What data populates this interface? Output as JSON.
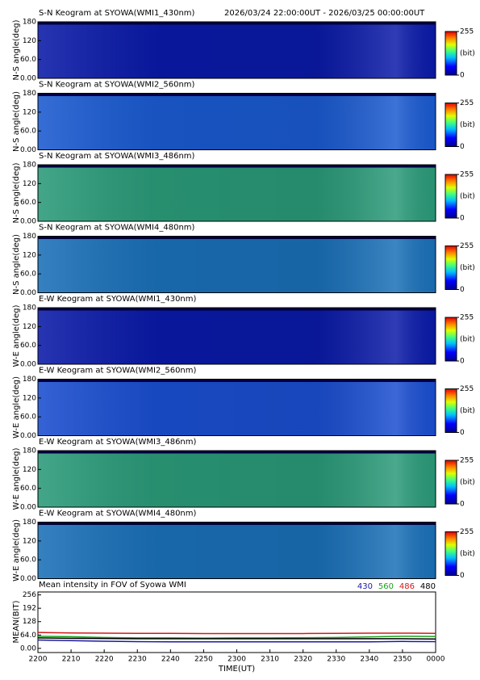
{
  "chart_data": [
    {
      "type": "image",
      "title": "S-N Keogram at SYOWA(WMI1_430nm)",
      "subtitle": "2026/03/24 22:00:00UT - 2026/03/25 00:00:00UT",
      "ylabel": "N-S angle(deg)",
      "ylim": [
        0,
        180
      ],
      "yticks": [
        {
          "value": 0,
          "label": "0.00"
        },
        {
          "value": 60,
          "label": "60.0"
        },
        120,
        180
      ],
      "color": "#0a1aa8",
      "colorbar_ticks": [
        0,
        255
      ],
      "colorbar_label": "(bit)"
    },
    {
      "type": "image",
      "title": "S-N Keogram at SYOWA(WMI2_560nm)",
      "ylabel": "N-S angle(deg)",
      "ylim": [
        0,
        180
      ],
      "yticks": [
        {
          "value": 0,
          "label": "0.00"
        },
        {
          "value": 60,
          "label": "60.0"
        },
        120,
        180
      ],
      "color": "#1a5ad0",
      "colorbar_ticks": [
        0,
        255
      ],
      "colorbar_label": "(bit)"
    },
    {
      "type": "image",
      "title": "S-N Keogram at SYOWA(WMI3_486nm)",
      "ylabel": "N-S angle(deg)",
      "ylim": [
        0,
        180
      ],
      "yticks": [
        {
          "value": 0,
          "label": "0.00"
        },
        {
          "value": 60,
          "label": "60.0"
        },
        120,
        180
      ],
      "color": "#2a9a78",
      "colorbar_ticks": [
        0,
        255
      ],
      "colorbar_label": "(bit)"
    },
    {
      "type": "image",
      "title": "S-N Keogram at SYOWA(WMI4_480nm)",
      "ylabel": "N-S angle(deg)",
      "ylim": [
        0,
        180
      ],
      "yticks": [
        {
          "value": 0,
          "label": "0.00"
        },
        {
          "value": 60,
          "label": "60.0"
        },
        120,
        180
      ],
      "color": "#1a70b8",
      "colorbar_ticks": [
        0,
        255
      ],
      "colorbar_label": "(bit)"
    },
    {
      "type": "image",
      "title": "E-W Keogram at SYOWA(WMI1_430nm)",
      "ylabel": "W-E angle(deg)",
      "ylim": [
        0,
        180
      ],
      "yticks": [
        {
          "value": 0,
          "label": "0.00"
        },
        {
          "value": 60,
          "label": "60.0"
        },
        120,
        180
      ],
      "color": "#0a1aa8",
      "colorbar_ticks": [
        0,
        255
      ],
      "colorbar_label": "(bit)"
    },
    {
      "type": "image",
      "title": "E-W Keogram at SYOWA(WMI2_560nm)",
      "ylabel": "W-E angle(deg)",
      "ylim": [
        0,
        180
      ],
      "yticks": [
        {
          "value": 0,
          "label": "0.00"
        },
        {
          "value": 60,
          "label": "60.0"
        },
        120,
        180
      ],
      "color": "#1a4ed0",
      "colorbar_ticks": [
        0,
        255
      ],
      "colorbar_label": "(bit)"
    },
    {
      "type": "image",
      "title": "E-W Keogram at SYOWA(WMI3_486nm)",
      "ylabel": "W-E angle(deg)",
      "ylim": [
        0,
        180
      ],
      "yticks": [
        {
          "value": 0,
          "label": "0.00"
        },
        {
          "value": 60,
          "label": "60.0"
        },
        120,
        180
      ],
      "color": "#2a9a78",
      "colorbar_ticks": [
        0,
        255
      ],
      "colorbar_label": "(bit)"
    },
    {
      "type": "image",
      "title": "E-W Keogram at SYOWA(WMI4_480nm)",
      "ylabel": "W-E angle(deg)",
      "ylim": [
        0,
        180
      ],
      "yticks": [
        {
          "value": 0,
          "label": "0.00"
        },
        {
          "value": 60,
          "label": "60.0"
        },
        120,
        180
      ],
      "color": "#1a70b8",
      "colorbar_ticks": [
        0,
        255
      ],
      "colorbar_label": "(bit)"
    },
    {
      "type": "line",
      "title": "Mean intensity in FOV of Syowa WMI",
      "ylabel": "MEAN(BIT)",
      "xlabel": "TIME(UT)",
      "x": [
        0,
        10,
        20,
        30,
        40,
        50,
        60,
        70,
        80,
        90,
        100,
        110,
        120
      ],
      "xlim": [
        0,
        120
      ],
      "xticks": [
        {
          "value": 0,
          "label": "2200"
        },
        {
          "value": 10,
          "label": "2210"
        },
        {
          "value": 20,
          "label": "2220"
        },
        {
          "value": 30,
          "label": "2230"
        },
        {
          "value": 40,
          "label": "2240"
        },
        {
          "value": 50,
          "label": "2250"
        },
        {
          "value": 60,
          "label": "2300"
        },
        {
          "value": 70,
          "label": "2310"
        },
        {
          "value": 80,
          "label": "2320"
        },
        {
          "value": 90,
          "label": "2330"
        },
        {
          "value": 100,
          "label": "2340"
        },
        {
          "value": 110,
          "label": "2350"
        },
        {
          "value": 120,
          "label": "0000"
        }
      ],
      "ylim": [
        -20,
        270
      ],
      "yticks": [
        {
          "value": 0,
          "label": "0.00"
        },
        {
          "value": 64,
          "label": "64.0"
        },
        128,
        192,
        256
      ],
      "series": [
        {
          "name": "430",
          "color": "#1a1aa0",
          "values": [
            40,
            37,
            34,
            32,
            31,
            31,
            31,
            31,
            31,
            31,
            31,
            33,
            32
          ]
        },
        {
          "name": "560",
          "color": "#1aa01a",
          "values": [
            58,
            56,
            52,
            50,
            50,
            49,
            50,
            50,
            51,
            52,
            55,
            58,
            57
          ]
        },
        {
          "name": "486",
          "color": "#d01a1a",
          "values": [
            76,
            74,
            73,
            72,
            72,
            71,
            71,
            71,
            71,
            72,
            73,
            73,
            72
          ]
        },
        {
          "name": "480",
          "color": "#000000",
          "values": [
            50,
            48,
            47,
            46,
            46,
            46,
            46,
            46,
            46,
            46,
            46,
            46,
            45
          ]
        }
      ]
    }
  ]
}
